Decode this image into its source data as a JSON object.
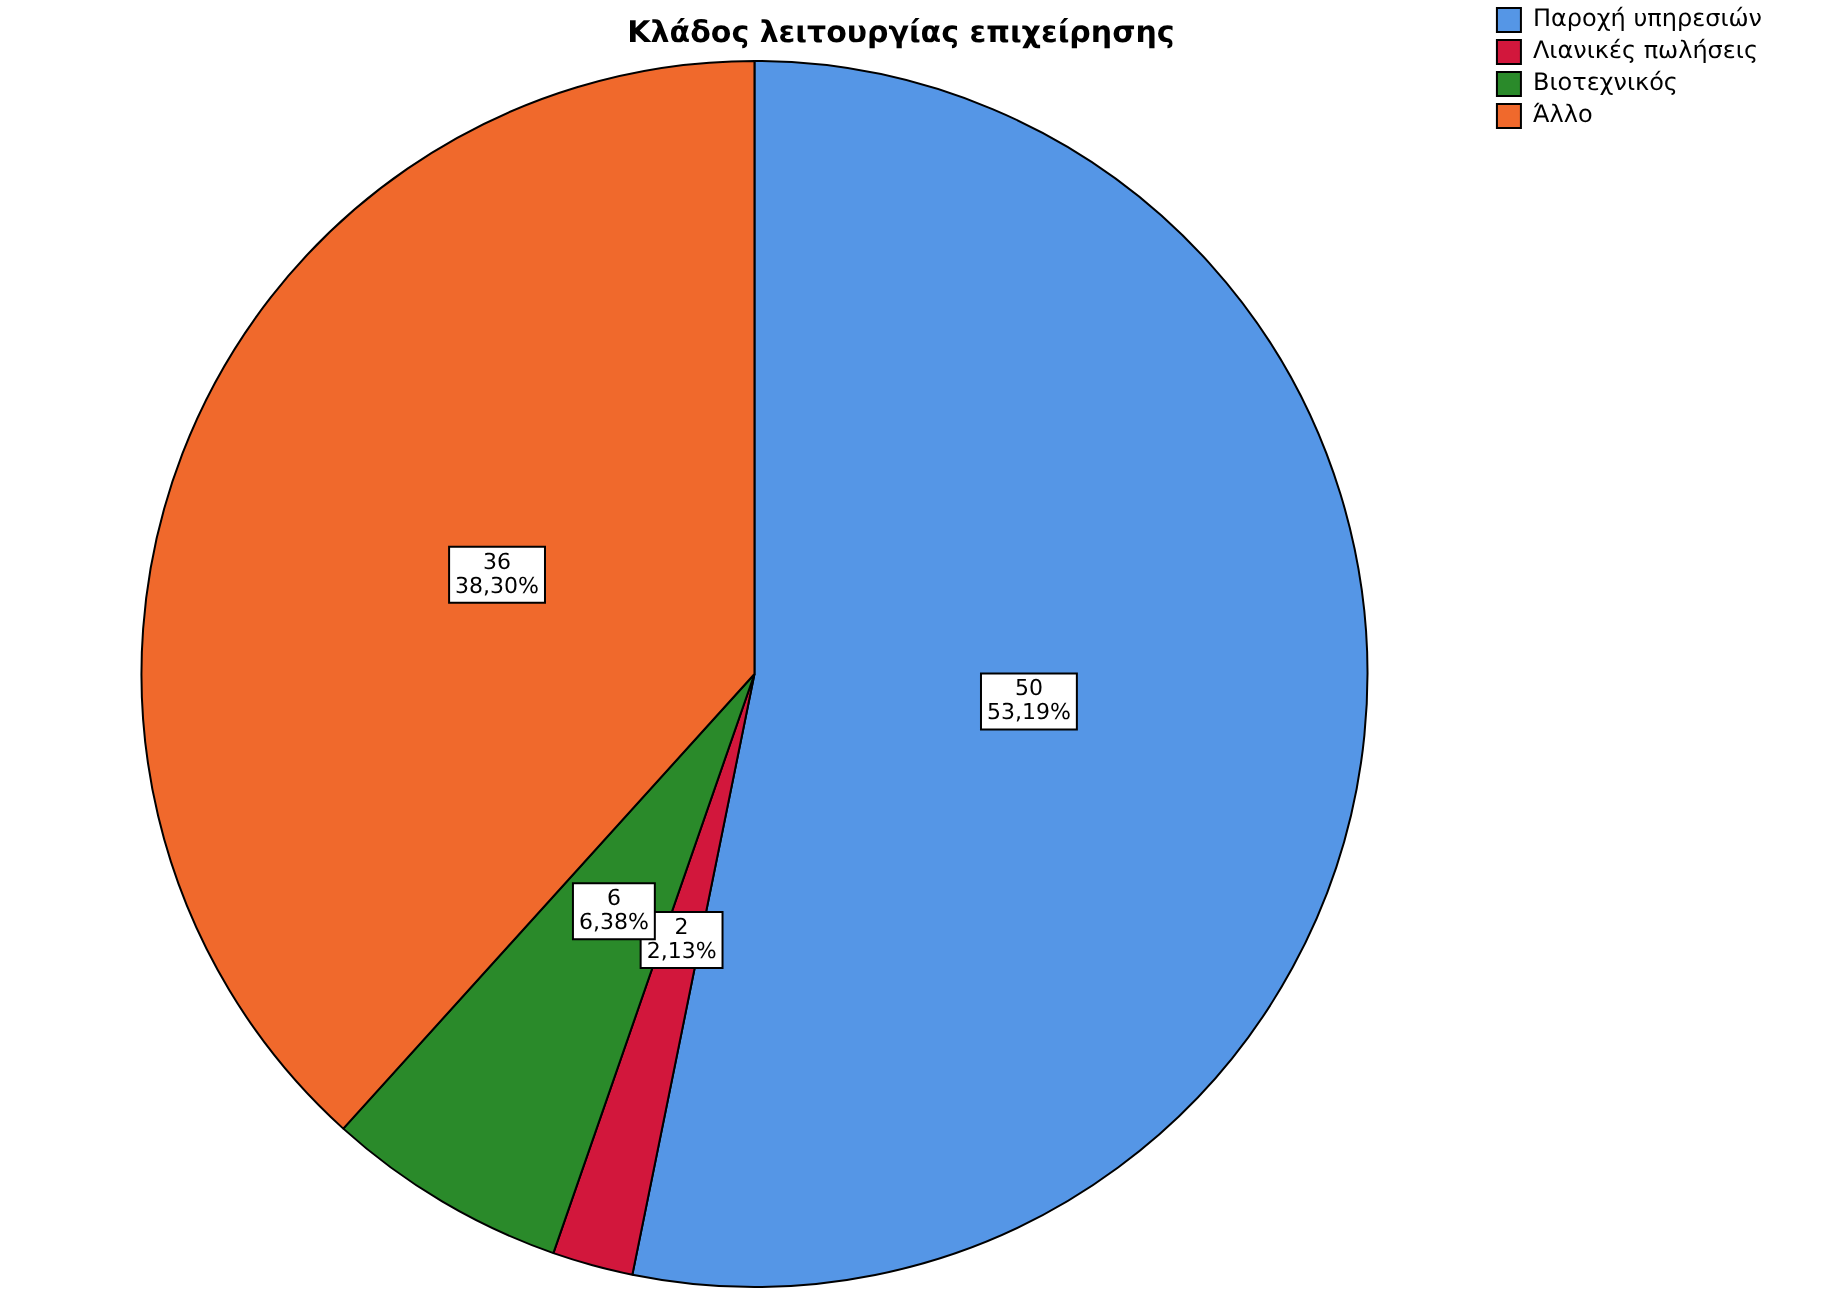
{
  "chart_data": {
    "type": "pie",
    "title": "Κλάδος λειτουργίας επιχείρησης",
    "categories": [
      "Παροχή υπηρεσιών",
      "Λιανικές πωλήσεις",
      "Βιοτεχνικός",
      "Άλλο"
    ],
    "values": [
      50,
      2,
      6,
      36
    ],
    "colors": [
      "#5596e6",
      "#d2173c",
      "#2a8a2a",
      "#f0692c"
    ],
    "value_labels": [
      "50\n53,19%",
      "2\n2,13%",
      "6\n6,38%",
      "36\n38,30%"
    ],
    "legend": "top right"
  }
}
